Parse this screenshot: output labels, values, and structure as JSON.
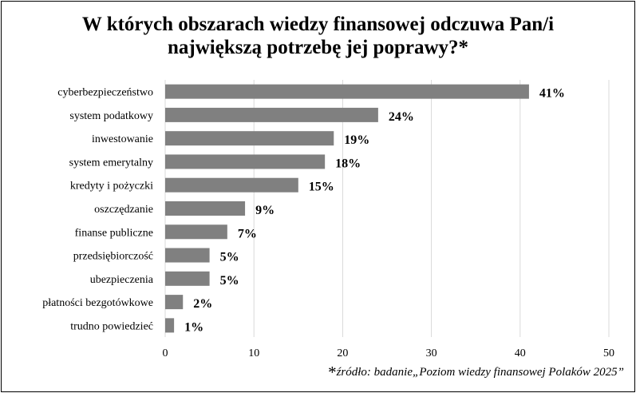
{
  "title": {
    "line1": "W których obszarach wiedzy finansowej odczuwa Pan/i",
    "line2": "największą potrzebę jej poprawy?*"
  },
  "source": {
    "marker": "*",
    "text": "źródło: badanie„Poziom wiedzy finansowej Polaków 2025”"
  },
  "chart_data": {
    "type": "bar",
    "orientation": "horizontal",
    "title": "W których obszarach wiedzy finansowej odczuwa Pan/i największą potrzebę jej poprawy?*",
    "categories": [
      "cyberbezpieczeństwo",
      "system podatkowy",
      "inwestowanie",
      "system emerytalny",
      "kredyty i pożyczki",
      "oszczędzanie",
      "finanse publiczne",
      "przedsiębiorczość",
      "ubezpieczenia",
      "płatności bezgotówkowe",
      "trudno powiedzieć"
    ],
    "values": [
      41,
      24,
      19,
      18,
      15,
      9,
      7,
      5,
      5,
      2,
      1
    ],
    "data_labels": [
      "41%",
      "24%",
      "19%",
      "18%",
      "15%",
      "9%",
      "7%",
      "5%",
      "5%",
      "2%",
      "1%"
    ],
    "xlim": [
      0,
      50
    ],
    "xticks": [
      0,
      10,
      20,
      30,
      40,
      50
    ],
    "xlabel": "",
    "ylabel": "",
    "grid": "vertical",
    "legend": "none",
    "bar_color": "#808080",
    "grid_color": "#d9d9d9"
  }
}
